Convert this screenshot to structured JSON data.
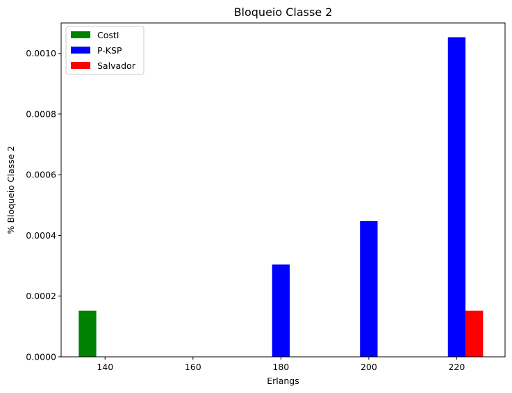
{
  "chart_data": {
    "type": "bar",
    "title": "Bloqueio Classe 2",
    "xlabel": "Erlangs",
    "ylabel": "% Bloqueio Classe 2",
    "x_ticks": [
      "140",
      "160",
      "180",
      "200",
      "220"
    ],
    "x_range": [
      130,
      231
    ],
    "xlim": [
      130,
      231
    ],
    "ylim": [
      0,
      0.0011
    ],
    "y_ticks": [
      0,
      0.0002,
      0.0004,
      0.0006,
      0.0008,
      0.001
    ],
    "y_tick_labels": [
      "0.0000",
      "0.0002",
      "0.0004",
      "0.0006",
      "0.0008",
      "0.0010"
    ],
    "categories": [
      140,
      160,
      180,
      200,
      220
    ],
    "bar_width": 4,
    "legend_position": "upper left",
    "series": [
      {
        "name": "CostI",
        "color": "#008000",
        "offset": -4,
        "values": [
          0.000152,
          0,
          0,
          0,
          0
        ]
      },
      {
        "name": "P-KSP",
        "color": "#0000ff",
        "offset": 0,
        "values": [
          0,
          0,
          0.000304,
          0.000447,
          0.001053
        ]
      },
      {
        "name": "Salvador",
        "color": "#ff0000",
        "offset": 4,
        "values": [
          0,
          0,
          0,
          0,
          0.000152
        ]
      }
    ]
  }
}
